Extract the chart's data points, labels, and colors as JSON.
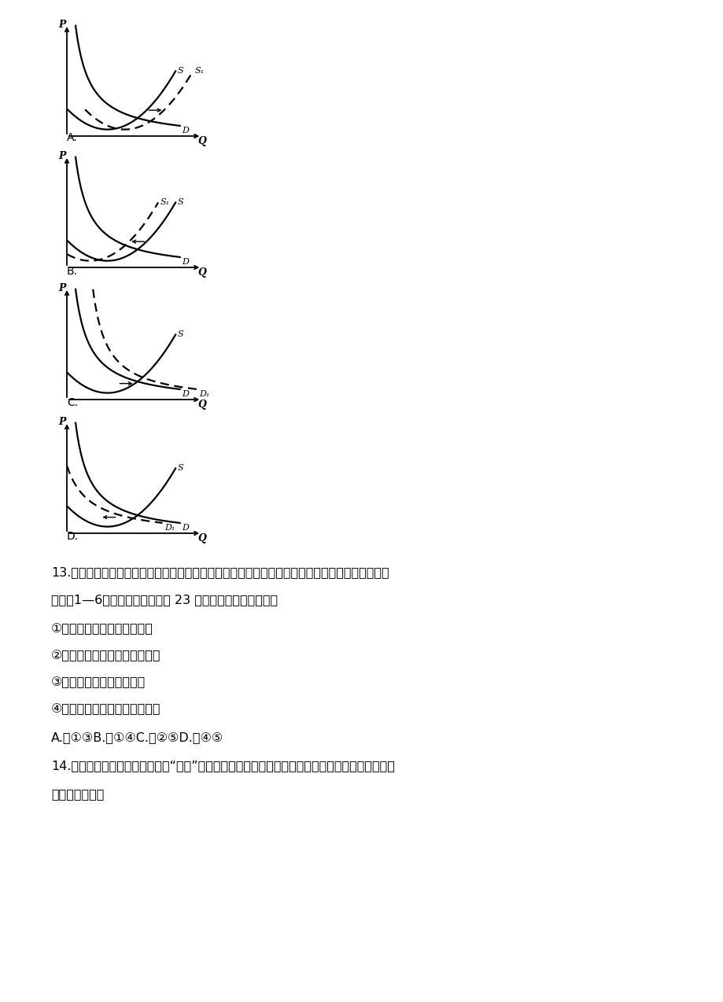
{
  "background_color": "#f5f5f5",
  "diagrams": [
    {
      "label": "A.",
      "supply_solid_shift": 0.0,
      "supply_solid_label": "S",
      "supply_dashed_shift": 1.2,
      "supply_dashed_label": "S₁",
      "supply_arrow_dir": 1,
      "demand_solid_shift": 0.0,
      "demand_solid_label": "D",
      "demand_dashed_shift": null,
      "demand_dashed_label": null,
      "demand_arrow_dir": null
    },
    {
      "label": "B.",
      "supply_solid_shift": 0.0,
      "supply_solid_label": "S",
      "supply_dashed_shift": -1.2,
      "supply_dashed_label": "S₁",
      "supply_arrow_dir": -1,
      "demand_solid_shift": 0.0,
      "demand_solid_label": "D",
      "demand_dashed_shift": null,
      "demand_dashed_label": null,
      "demand_arrow_dir": null
    },
    {
      "label": "C.",
      "supply_solid_shift": 0.0,
      "supply_solid_label": "S",
      "supply_dashed_shift": null,
      "supply_dashed_label": null,
      "supply_arrow_dir": null,
      "demand_solid_shift": 0.0,
      "demand_solid_label": "D",
      "demand_dashed_shift": 1.2,
      "demand_dashed_label": "D₁",
      "demand_arrow_dir": 1
    },
    {
      "label": "D.",
      "supply_solid_shift": 0.0,
      "supply_solid_label": "S",
      "supply_dashed_shift": null,
      "supply_dashed_label": null,
      "supply_arrow_dir": null,
      "demand_solid_shift": 0.0,
      "demand_solid_label": "D",
      "demand_dashed_shift": -1.2,
      "demand_dashed_label": "D₁",
      "demand_arrow_dir": -1
    }
  ],
  "q13_line1": "13.　以微信、文付宝为代表的移动支付成了不少中国人的消费新时尚，快速渗透人们的日常生活。",
  "q13_line2": "据统计1—6月我国移动支付高达 23 万亿元人民币。出此可见",
  "q13_opt1": "①移动支付加快商品流通遗度",
  "q13_opt2": "②移动支付增加货币实际供应量",
  "q13_opt3": "③金融创新进了经济的发展",
  "q13_opt4": "④新的消费体验优化了消费结构",
  "q13_answer": "A.　①③B.　①④C.　②⑤D.　④⑤",
  "q14_line1": "14.　随着人们消费水平的提高，“嘟购”受到越来越多人的青睐，其原因如下图所示，它对我国供给",
  "q14_line2": "侧改革的启示有"
}
